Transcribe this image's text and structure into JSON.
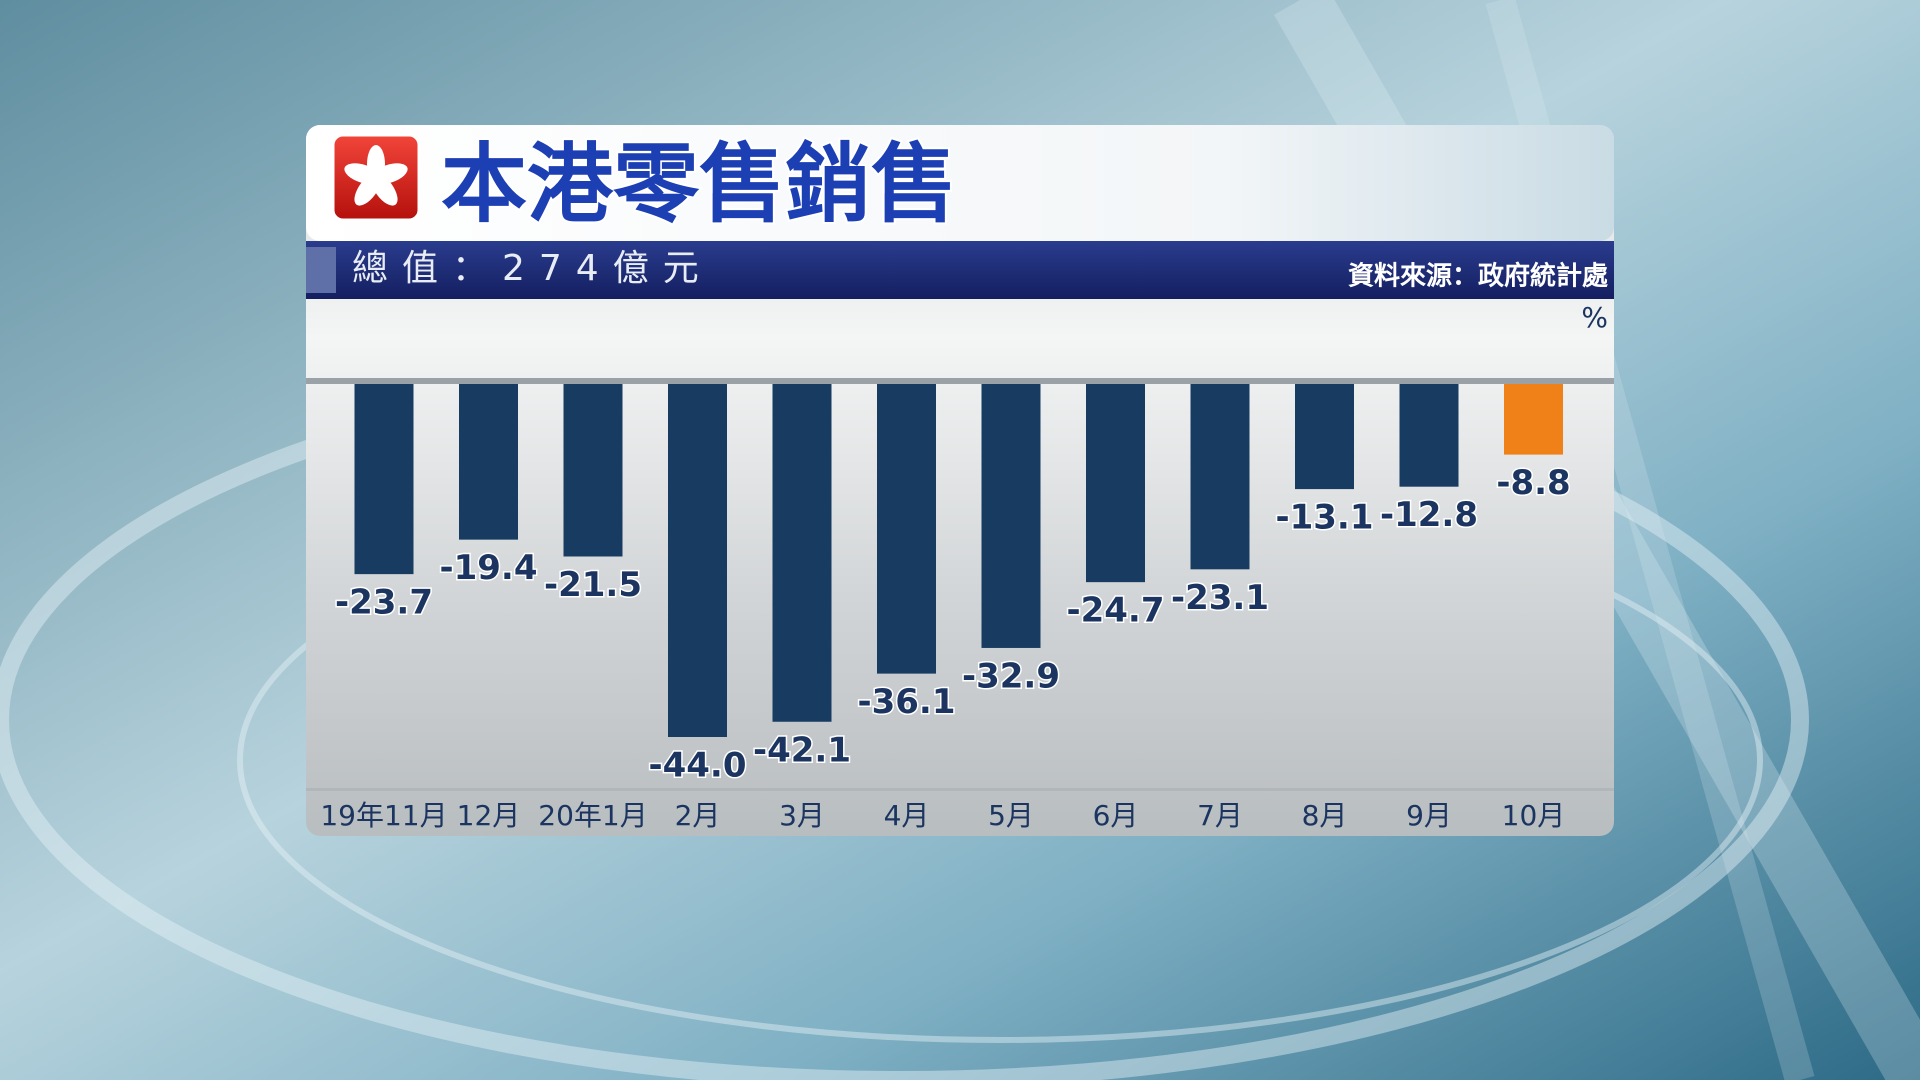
{
  "chart_data": {
    "type": "bar",
    "title": "本港零售銷售",
    "subtitle": "總值：274億元",
    "source": "資料來源：政府統計處",
    "unit": "%",
    "categories": [
      "19年11月",
      "12月",
      "20年1月",
      "2月",
      "3月",
      "4月",
      "5月",
      "6月",
      "7月",
      "8月",
      "9月",
      "10月"
    ],
    "values": [
      -23.7,
      -19.4,
      -21.5,
      -44.0,
      -42.1,
      -36.1,
      -32.9,
      -24.7,
      -23.1,
      -13.1,
      -12.8,
      -8.8
    ],
    "value_labels": [
      "-23.7",
      "-19.4",
      "-21.5",
      "-44.0",
      "-42.1",
      "-36.1",
      "-32.9",
      "-24.7",
      "-23.1",
      "-13.1",
      "-12.8",
      "-8.8"
    ],
    "colors": [
      "#183b62",
      "#183b62",
      "#183b62",
      "#183b62",
      "#183b62",
      "#183b62",
      "#183b62",
      "#183b62",
      "#183b62",
      "#183b62",
      "#183b62",
      "#f08018"
    ]
  }
}
